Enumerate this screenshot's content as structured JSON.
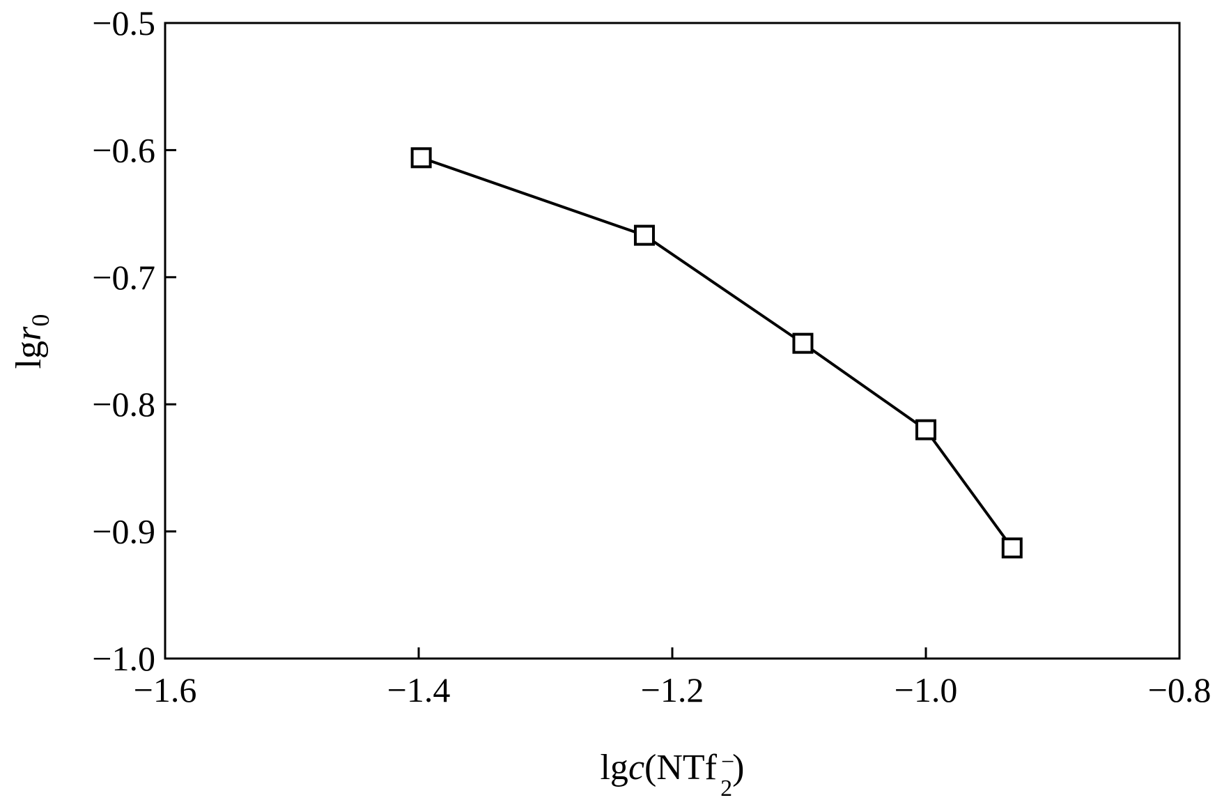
{
  "chart_data": {
    "type": "line",
    "xlabel": {
      "prefix": "lg",
      "var": "c",
      "open": "(NTf",
      "sup": "−",
      "sub": "2",
      "close": ")"
    },
    "ylabel": {
      "prefix": "lg",
      "var": "r",
      "sub": "0"
    },
    "xlim": [
      -1.6,
      -0.8
    ],
    "ylim": [
      -1.0,
      -0.5
    ],
    "xticks": [
      -1.6,
      -1.4,
      -1.2,
      -1.0,
      -0.8
    ],
    "xtick_labels": [
      "−1.6",
      "−1.4",
      "−1.2",
      "−1.0",
      "−0.8"
    ],
    "yticks": [
      -1.0,
      -0.9,
      -0.8,
      -0.7,
      -0.6,
      -0.5
    ],
    "ytick_labels": [
      "−1.0",
      "−0.9",
      "−0.8",
      "−0.7",
      "−0.6",
      "−0.5"
    ],
    "grid": false,
    "marker": "open-square",
    "line_color": "#000000",
    "series": [
      {
        "x": [
          -1.398,
          -1.222,
          -1.097,
          -1.0,
          -0.932
        ],
        "y": [
          -0.606,
          -0.667,
          -0.752,
          -0.82,
          -0.913
        ]
      }
    ]
  }
}
